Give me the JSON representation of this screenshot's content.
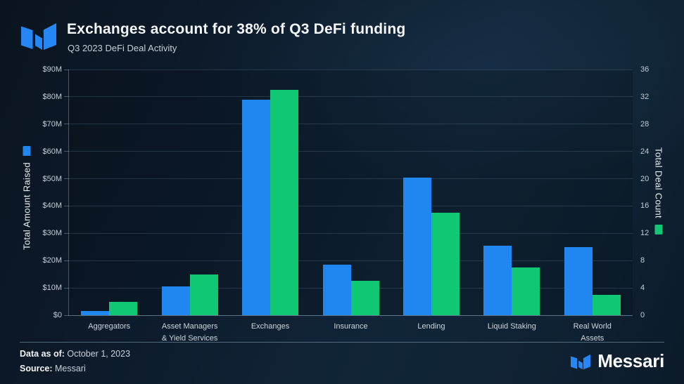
{
  "header": {
    "title": "Exchanges account for 38% of Q3 DeFi funding",
    "subtitle": "Q3 2023 DeFi Deal Activity"
  },
  "chart_data": {
    "type": "bar",
    "categories": [
      "Aggregators",
      "Asset Managers\n& Yield Services",
      "Exchanges",
      "Insurance",
      "Lending",
      "Liquid Staking",
      "Real World\nAssets"
    ],
    "series": [
      {
        "name": "Total Amount Raised",
        "axis": "left",
        "color": "#2187F0",
        "unit": "$M",
        "values": [
          1.5,
          10.5,
          79,
          18.5,
          50.5,
          25.5,
          25
        ]
      },
      {
        "name": "Total Deal Count",
        "axis": "right",
        "color": "#10C873",
        "values": [
          2,
          6,
          33,
          5,
          15,
          7,
          3
        ]
      }
    ],
    "left_axis": {
      "label": "Total Amount Raised",
      "min": 0,
      "max": 90,
      "ticks": [
        "$0",
        "$10M",
        "$20M",
        "$30M",
        "$40M",
        "$50M",
        "$60M",
        "$70M",
        "$80M",
        "$90M"
      ]
    },
    "right_axis": {
      "label": "Total Deal Count",
      "min": 0,
      "max": 36,
      "ticks": [
        "0",
        "4",
        "8",
        "12",
        "16",
        "20",
        "24",
        "28",
        "32",
        "36"
      ]
    },
    "grid": true,
    "legend_position": "on-axis-titles"
  },
  "footer": {
    "data_as_of_label": "Data as of:",
    "data_as_of_value": " October 1, 2023",
    "source_label": "Source:",
    "source_value": " Messari",
    "brand": "Messari"
  },
  "colors": {
    "brand_blue": "#2487F5",
    "amount_bar": "#2187F0",
    "count_bar": "#10C873"
  }
}
